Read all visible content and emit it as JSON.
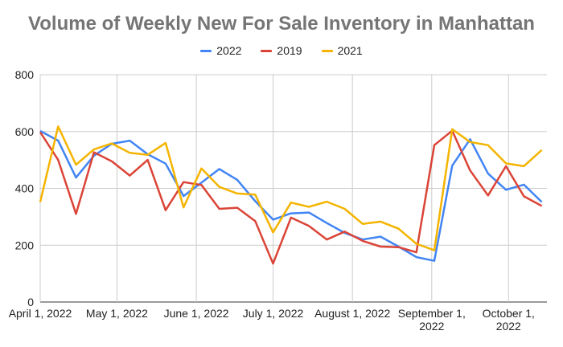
{
  "chart_data": {
    "type": "line",
    "title": "Volume of Weekly New For Sale Inventory in Manhattan",
    "xlabel": "",
    "ylabel": "",
    "ylim": [
      0,
      800
    ],
    "yticks": [
      0,
      200,
      400,
      600,
      800
    ],
    "grid": true,
    "legend_position": "top",
    "x_tick_labels": [
      {
        "date": "2022-04-01",
        "lines": [
          "April 1, 2022"
        ]
      },
      {
        "date": "2022-05-01",
        "lines": [
          "May 1, 2022"
        ]
      },
      {
        "date": "2022-06-01",
        "lines": [
          "June 1, 2022"
        ]
      },
      {
        "date": "2022-07-01",
        "lines": [
          "July 1, 2022"
        ]
      },
      {
        "date": "2022-08-01",
        "lines": [
          "August 1, 2022"
        ]
      },
      {
        "date": "2022-09-01",
        "lines": [
          "September 1,",
          "2022"
        ]
      },
      {
        "date": "2022-10-01",
        "lines": [
          "October 1,",
          "2022"
        ]
      }
    ],
    "x": [
      "2022-04-01",
      "2022-04-08",
      "2022-04-15",
      "2022-04-22",
      "2022-04-29",
      "2022-05-06",
      "2022-05-13",
      "2022-05-20",
      "2022-05-27",
      "2022-06-03",
      "2022-06-10",
      "2022-06-17",
      "2022-06-24",
      "2022-07-01",
      "2022-07-08",
      "2022-07-15",
      "2022-07-22",
      "2022-07-29",
      "2022-08-05",
      "2022-08-12",
      "2022-08-19",
      "2022-08-26",
      "2022-09-02",
      "2022-09-09",
      "2022-09-16",
      "2022-09-23",
      "2022-09-30",
      "2022-10-07",
      "2022-10-14"
    ],
    "series": [
      {
        "name": "2022",
        "color": "#4285f4",
        "values": [
          602,
          568,
          438,
          515,
          557,
          568,
          520,
          487,
          373,
          420,
          468,
          430,
          355,
          290,
          312,
          315,
          278,
          243,
          220,
          230,
          195,
          158,
          145,
          480,
          573,
          452,
          395,
          413,
          352
        ]
      },
      {
        "name": "2019",
        "color": "#db4437",
        "values": [
          598,
          500,
          310,
          527,
          495,
          445,
          500,
          323,
          422,
          412,
          328,
          332,
          285,
          135,
          297,
          268,
          220,
          248,
          215,
          195,
          193,
          175,
          552,
          603,
          463,
          375,
          478,
          372,
          338
        ]
      },
      {
        "name": "2021",
        "color": "#f4b400",
        "values": [
          352,
          618,
          483,
          537,
          558,
          525,
          518,
          560,
          333,
          470,
          405,
          382,
          378,
          245,
          350,
          335,
          353,
          328,
          275,
          283,
          258,
          205,
          182,
          608,
          563,
          552,
          488,
          478,
          535
        ]
      }
    ]
  }
}
